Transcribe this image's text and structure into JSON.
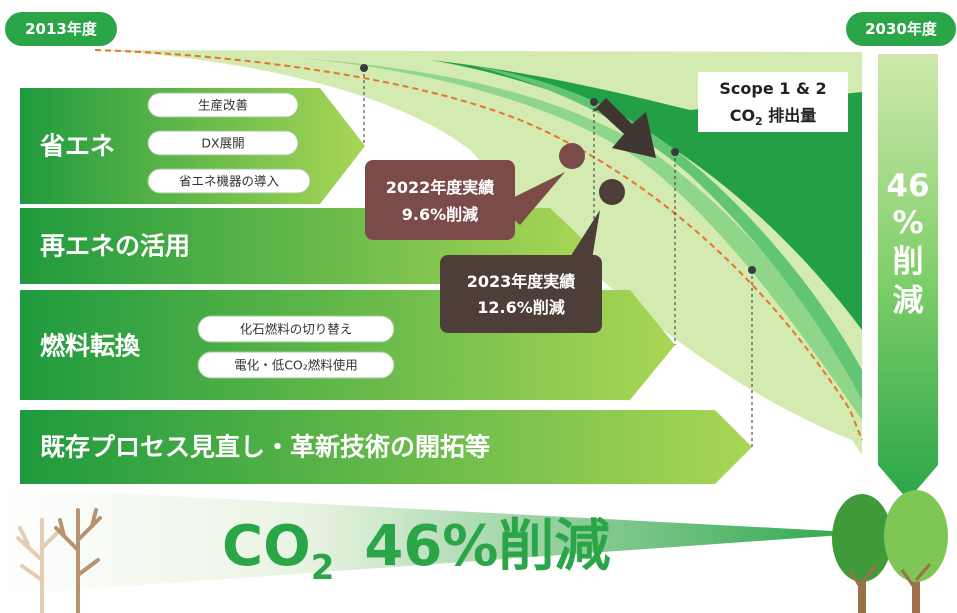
{
  "badges": {
    "start_year": "2013年度",
    "end_year": "2030年度"
  },
  "emissions_label": {
    "line1": "Scope 1 & 2",
    "line2_prefix": "CO",
    "line2_sub": "2",
    "line2_suffix": " 排出量"
  },
  "measures": [
    {
      "title": "省エネ",
      "items": [
        "生産改善",
        "DX展開",
        "省エネ機器の導入"
      ]
    },
    {
      "title": "再エネの活用",
      "items": []
    },
    {
      "title": "燃料転換",
      "items": [
        "化石燃料の切り替え",
        "電化・低CO₂燃料使用"
      ]
    },
    {
      "title": "既存プロセス見直し・革新技術の開拓等",
      "items": []
    }
  ],
  "results": [
    {
      "line1": "2022年度実績",
      "line2": "9.6%削減",
      "color": "#7a4b48"
    },
    {
      "line1": "2023年度実績",
      "line2": "12.6%削減",
      "color": "#4d3f38"
    }
  ],
  "target_vertical": [
    "46",
    "%",
    "削",
    "減"
  ],
  "bottom_banner": {
    "prefix": "CO",
    "sub": "2",
    "suffix": "46%削減"
  },
  "colors": {
    "badge_green": "#2aa548",
    "band_dark": "#1f9a3e",
    "band_light": "#a9d655",
    "curve_dashed": "#e8742b",
    "wedge_dark": "#23a046",
    "wedge_mid": "#62c573",
    "wedge_light": "#cde6a6"
  }
}
